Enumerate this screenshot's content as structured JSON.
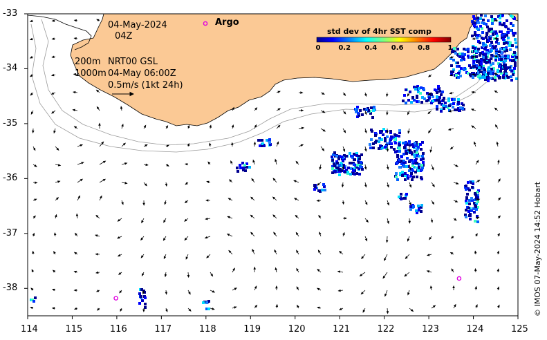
{
  "map": {
    "date_label": "04-May-2024",
    "hour_label": "04Z",
    "contour_label_200": "200m",
    "contour_label_1000": "1000m",
    "source_label": "NRT00 GSL",
    "source_time": "04-May 06:00Z",
    "scale_label": "0.5m/s (1kt 24h)",
    "credit": "© IMOS 07-May-2024 14:52 Hobart",
    "lon_range": [
      114,
      125
    ],
    "lat_range": [
      -38.5,
      -33
    ],
    "x_ticks": [
      "114",
      "115",
      "116",
      "117",
      "118",
      "119",
      "120",
      "121",
      "122",
      "123",
      "124",
      "125"
    ],
    "y_ticks": [
      "-33",
      "-34",
      "-35",
      "-36",
      "-37",
      "-38"
    ],
    "land_color": "#fbc995",
    "ocean_color": "#ffffff"
  },
  "legend": {
    "argo_label": "Argo",
    "argo_color": "#e000e0",
    "colorbar_title": "std dev of 4hr SST comp",
    "colorbar_ticks": [
      "0",
      "0.2",
      "0.4",
      "0.6",
      "0.8",
      "1"
    ]
  },
  "argo_floats": [
    {
      "lon": 115.98,
      "lat": -38.18
    },
    {
      "lon": 123.68,
      "lat": -37.82
    }
  ]
}
